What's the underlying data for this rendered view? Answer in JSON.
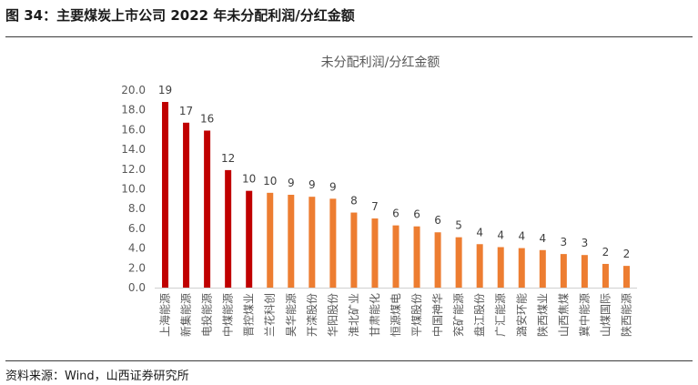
{
  "figure_title": "图 34：主要煤炭上市公司 2022 年未分配利润/分红金额",
  "source_note": "资料来源：Wind，山西证券研究所",
  "chart_data": {
    "type": "bar",
    "title": "未分配利润/分红金额",
    "xlabel": "",
    "ylabel": "",
    "ylim": [
      0,
      20
    ],
    "yticks": [
      "0.0",
      "2.0",
      "4.0",
      "6.0",
      "8.0",
      "10.0",
      "12.0",
      "14.0",
      "16.0",
      "18.0",
      "20.0"
    ],
    "grid": false,
    "legend": "none",
    "categories": [
      "上海能源",
      "新集能源",
      "电投能源",
      "中煤能源",
      "晋控煤业",
      "兰花科创",
      "昊华能源",
      "开滦股份",
      "华阳股份",
      "淮北矿业",
      "甘肃能化",
      "恒源煤电",
      "平煤股份",
      "中国神华",
      "兖矿能源",
      "盘江股份",
      "广汇能源",
      "潞安环能",
      "陕西煤业",
      "山西焦煤",
      "冀中能源",
      "山煤国际",
      "陕西能源"
    ],
    "values": [
      18.8,
      16.7,
      15.9,
      11.9,
      9.8,
      9.6,
      9.4,
      9.2,
      9.0,
      7.6,
      7.0,
      6.3,
      6.2,
      5.6,
      5.1,
      4.4,
      4.1,
      4.0,
      3.8,
      3.4,
      3.3,
      2.4,
      2.2
    ],
    "data_labels": [
      "19",
      "17",
      "16",
      "12",
      "10",
      "10",
      "9",
      "9",
      "9",
      "8",
      "7",
      "6",
      "6",
      "6",
      "5",
      "4",
      "4",
      "4",
      "4",
      "3",
      "3",
      "2",
      "2"
    ],
    "colors": {
      "highlight": "#C00000",
      "default": "#ED7D31"
    },
    "highlight_count": 5
  }
}
